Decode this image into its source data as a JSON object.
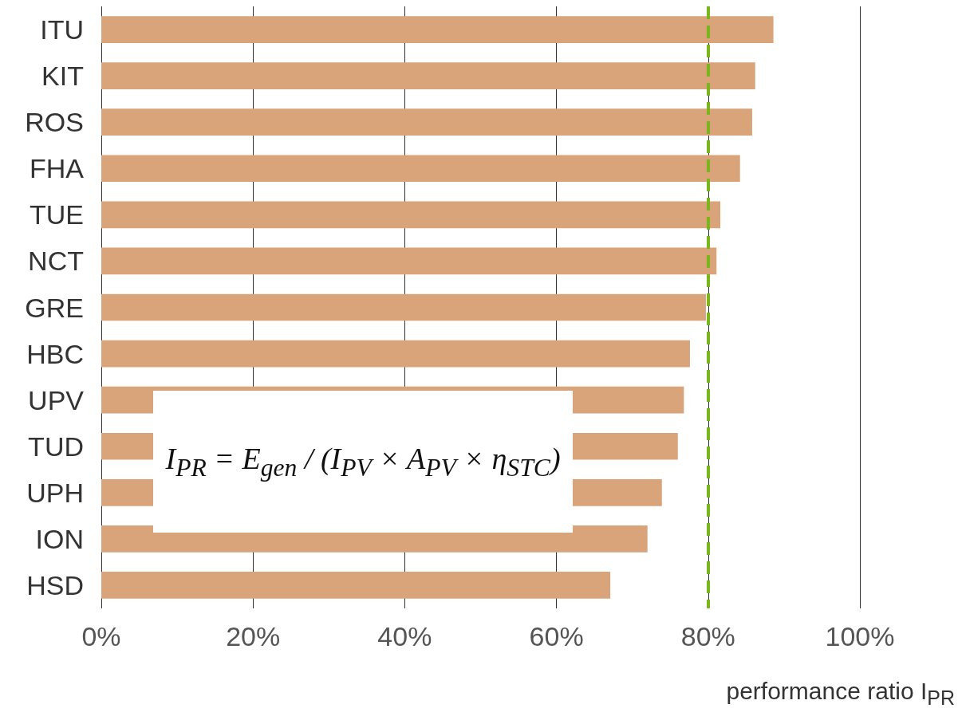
{
  "chart_data": {
    "type": "bar",
    "orientation": "horizontal",
    "categories": [
      "ITU",
      "KIT",
      "ROS",
      "FHA",
      "TUE",
      "NCT",
      "GRE",
      "HBC",
      "UPV",
      "TUD",
      "UPH",
      "ION",
      "HSD"
    ],
    "values": [
      88.6,
      86.2,
      85.8,
      84.2,
      81.6,
      81.1,
      79.7,
      77.6,
      76.8,
      76.0,
      73.9,
      72.0,
      67.1
    ],
    "color": "#d9a47a",
    "xlim": [
      0,
      100
    ],
    "xticks": [
      {
        "value": 0,
        "label": "0%"
      },
      {
        "value": 20,
        "label": "20%"
      },
      {
        "value": 40,
        "label": "40%"
      },
      {
        "value": 60,
        "label": "60%"
      },
      {
        "value": 80,
        "label": "80%"
      },
      {
        "value": 100,
        "label": "100%"
      }
    ],
    "xlabel": "performance ratio I$_{PR}$",
    "grid": "x",
    "ref_lines": [
      {
        "axis": "x",
        "value": 80,
        "color": "#7ab51d",
        "line_style": "dashed"
      }
    ],
    "annotations": [
      "I$_{PR}$ = E$_{gen}$ / (I$_{PV}$ × A$_{PV}$ × η$_{STC}$)"
    ]
  }
}
